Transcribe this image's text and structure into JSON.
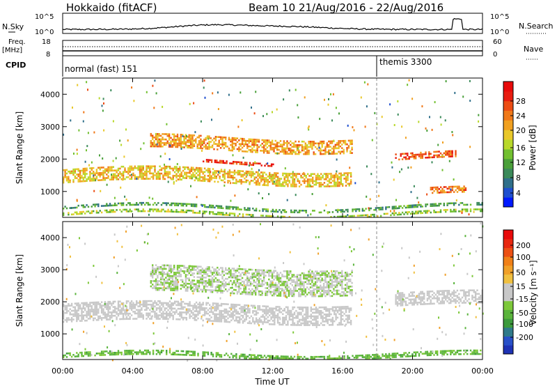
{
  "header": {
    "station": "Hokkaido (fitACF)",
    "beam_info": "Beam 10  21/Aug/2016 - 22/Aug/2016"
  },
  "noise_panel": {
    "left_label": "N.Sky",
    "right_label": "N.Search",
    "left_ticks": [
      "10^5",
      "10^0"
    ],
    "right_ticks": [
      "10^5",
      "10^0"
    ]
  },
  "freq_panel": {
    "left_label_1": "Freq.",
    "left_label_2": "[MHz]",
    "left_ticks": [
      "18",
      "8"
    ],
    "right_label": "Nave",
    "right_ticks": [
      "60",
      "0"
    ]
  },
  "cpid": {
    "label": "CPID",
    "segments": [
      {
        "name": "normal (fast) 151",
        "start_hour": 0
      },
      {
        "name": "themis 3300",
        "start_hour": 18
      }
    ]
  },
  "chart_data": [
    {
      "type": "heatmap",
      "title": "",
      "xlabel": "Time UT",
      "ylabel": "Slant Range [km]",
      "x_ticks": [
        "00:00",
        "04:00",
        "08:00",
        "12:00",
        "16:00",
        "20:00",
        "00:00"
      ],
      "xlim_hours": [
        0,
        24
      ],
      "ylim_km": [
        200,
        4500
      ],
      "y_ticks": [
        "1000",
        "2000",
        "3000",
        "4000"
      ],
      "colorbar": {
        "label": "Power [dB]",
        "ticks": [
          "4",
          "8",
          "12",
          "16",
          "20",
          "24",
          "28"
        ],
        "range": [
          0,
          30
        ],
        "colors": [
          "#0019ff",
          "#1f4fcf",
          "#2f6f8a",
          "#3b8a5a",
          "#4aa03a",
          "#72c030",
          "#b8d82a",
          "#e9c82a",
          "#f0a020",
          "#f07818",
          "#ec4c14",
          "#e81c10",
          "#e80a0a"
        ]
      },
      "bands": [
        {
          "range_km": [
            1700,
            1300
          ],
          "hours": [
            0,
            16.5
          ],
          "power": 18
        },
        {
          "range_km": [
            2300,
            2700
          ],
          "hours": [
            5,
            16.5
          ],
          "power": 20
        },
        {
          "range_km": [
            1900,
            2000
          ],
          "hours": [
            8,
            12
          ],
          "power": 26
        },
        {
          "range_km": [
            2000,
            2200
          ],
          "hours": [
            19,
            22.5
          ],
          "power": 24
        },
        {
          "range_km": [
            900,
            1100
          ],
          "hours": [
            21,
            23
          ],
          "power": 22
        },
        {
          "range_km": [
            300,
            400
          ],
          "hours": [
            0,
            24
          ],
          "power": 14
        },
        {
          "range_km": [
            500,
            600
          ],
          "hours": [
            0,
            24
          ],
          "power": 10
        }
      ]
    },
    {
      "type": "heatmap",
      "title": "",
      "xlabel": "Time UT",
      "ylabel": "Slant Range [km]",
      "x_ticks": [
        "00:00",
        "04:00",
        "08:00",
        "12:00",
        "16:00",
        "20:00",
        "00:00"
      ],
      "xlim_hours": [
        0,
        24
      ],
      "ylim_km": [
        200,
        4500
      ],
      "y_ticks": [
        "1000",
        "2000",
        "3000",
        "4000"
      ],
      "colorbar": {
        "label": "Velocity [m s⁻¹]",
        "ticks": [
          "200",
          "100",
          "50",
          "15",
          "-15",
          "-50",
          "-100",
          "-200"
        ],
        "range": [
          -250,
          250
        ],
        "colors": [
          "#1e32b4",
          "#2850c8",
          "#2f7a8a",
          "#3c9a3c",
          "#5ab43c",
          "#7dc83a",
          "#c8c8c8",
          "#c8c8c8",
          "#f0c040",
          "#f0a028",
          "#f08018",
          "#ec5014",
          "#e82810",
          "#e80a0a"
        ]
      },
      "bands": [
        {
          "range_km": [
            1400,
            2000
          ],
          "hours": [
            0,
            16.5
          ],
          "velocity": 0
        },
        {
          "range_km": [
            2300,
            3100
          ],
          "hours": [
            5,
            16.5
          ],
          "velocity": -30
        },
        {
          "range_km": [
            1900,
            2300
          ],
          "hours": [
            19,
            24
          ],
          "velocity": 0
        },
        {
          "range_km": [
            300,
            450
          ],
          "hours": [
            0,
            24
          ],
          "velocity": -80
        }
      ]
    }
  ]
}
